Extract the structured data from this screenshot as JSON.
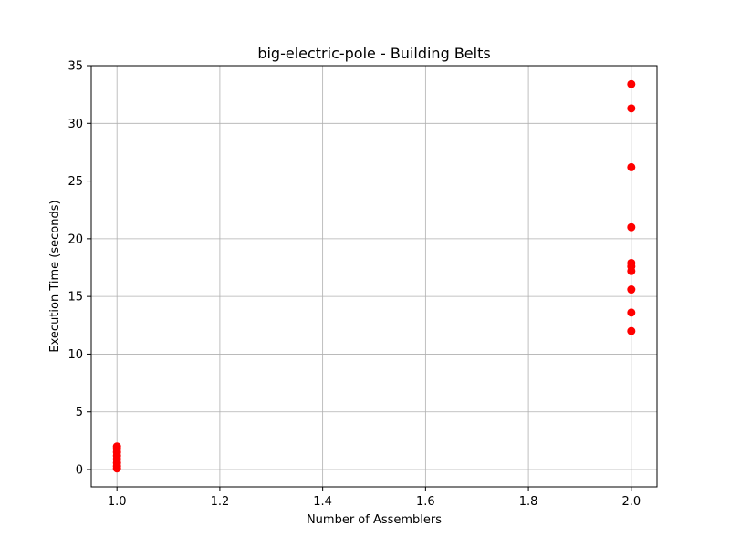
{
  "chart_data": {
    "type": "scatter",
    "title": "big-electric-pole - Building Belts",
    "xlabel": "Number of Assemblers",
    "ylabel": "Execution Time (seconds)",
    "xlim": [
      0.95,
      2.05
    ],
    "ylim": [
      -1.5,
      35.0
    ],
    "xticks": [
      1.0,
      1.2,
      1.4,
      1.6,
      1.8,
      2.0
    ],
    "xtick_labels": [
      "1.0",
      "1.2",
      "1.4",
      "1.6",
      "1.8",
      "2.0"
    ],
    "yticks": [
      0,
      5,
      10,
      15,
      20,
      25,
      30,
      35
    ],
    "ytick_labels": [
      "0",
      "5",
      "10",
      "15",
      "20",
      "25",
      "30",
      "35"
    ],
    "grid": true,
    "marker_color": "#ff0000",
    "points": [
      {
        "x": 1,
        "y": 0.1
      },
      {
        "x": 1,
        "y": 0.3
      },
      {
        "x": 1,
        "y": 0.6
      },
      {
        "x": 1,
        "y": 0.9
      },
      {
        "x": 1,
        "y": 1.2
      },
      {
        "x": 1,
        "y": 1.5
      },
      {
        "x": 1,
        "y": 1.8
      },
      {
        "x": 1,
        "y": 2.0
      },
      {
        "x": 2,
        "y": 12.0
      },
      {
        "x": 2,
        "y": 13.6
      },
      {
        "x": 2,
        "y": 15.6
      },
      {
        "x": 2,
        "y": 17.2
      },
      {
        "x": 2,
        "y": 17.6
      },
      {
        "x": 2,
        "y": 17.9
      },
      {
        "x": 2,
        "y": 21.0
      },
      {
        "x": 2,
        "y": 26.2
      },
      {
        "x": 2,
        "y": 31.3
      },
      {
        "x": 2,
        "y": 33.4
      }
    ]
  }
}
